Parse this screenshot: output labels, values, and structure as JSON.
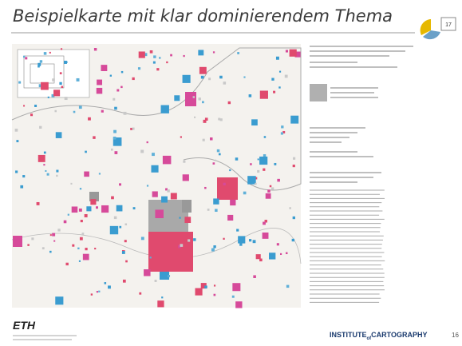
{
  "header": {
    "title": "Beispielkarte mit klar dominierendem Thema"
  },
  "logo": {
    "label": "17"
  },
  "footer": {
    "institution": "ETH",
    "institute_first": "INSTITUTE",
    "institute_of": "of",
    "institute_last": "CARTOGRAPHY",
    "page": "16"
  }
}
